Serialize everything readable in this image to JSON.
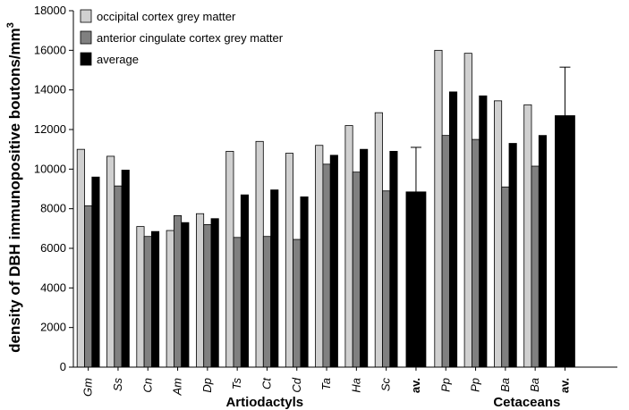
{
  "chart_data": {
    "type": "bar",
    "ylabel": "density of DBH  immunopositive boutons/mm",
    "ylabel_sup": "3",
    "ylim": [
      0,
      18000
    ],
    "yticks": [
      0,
      2000,
      4000,
      6000,
      8000,
      10000,
      12000,
      14000,
      16000,
      18000
    ],
    "legend_position": "top-left",
    "legend": [
      {
        "label": "occipital cortex grey matter",
        "color": "#d0d0d0"
      },
      {
        "label": "anterior cingulate cortex grey matter",
        "color": "#808080"
      },
      {
        "label": "average",
        "color": "#000000"
      }
    ],
    "groups": [
      {
        "name": "Artiodactyls",
        "categories": [
          "Gm",
          "Ss",
          "Cn",
          "Am",
          "Dp",
          "Ts",
          "Ct",
          "Cd",
          "Ta",
          "Ha",
          "Sc"
        ],
        "series": [
          {
            "name": "occipital cortex grey matter",
            "color": "#d0d0d0",
            "values": [
              11000,
              10650,
              7100,
              6900,
              7750,
              10900,
              11400,
              10800,
              11200,
              12200,
              12850
            ]
          },
          {
            "name": "anterior cingulate cortex grey matter",
            "color": "#808080",
            "values": [
              8150,
              9150,
              6600,
              7650,
              7200,
              6550,
              6600,
              6450,
              10250,
              9850,
              8900
            ]
          },
          {
            "name": "average",
            "color": "#000000",
            "values": [
              9600,
              9950,
              6850,
              7300,
              7500,
              8700,
              8950,
              8600,
              10700,
              11000,
              10900
            ]
          }
        ],
        "group_average": {
          "label": "av.",
          "value": 8850,
          "error": 2250,
          "color": "#000000"
        }
      },
      {
        "name": "Cetaceans",
        "categories": [
          "Pp",
          "Pp",
          "Ba",
          "Ba"
        ],
        "series": [
          {
            "name": "occipital cortex grey matter",
            "color": "#d0d0d0",
            "values": [
              16000,
              15850,
              13450,
              13250
            ]
          },
          {
            "name": "anterior cingulate cortex grey matter",
            "color": "#808080",
            "values": [
              11700,
              11500,
              9100,
              10150
            ]
          },
          {
            "name": "average",
            "color": "#000000",
            "values": [
              13900,
              13700,
              11300,
              11700
            ]
          }
        ],
        "group_average": {
          "label": "av.",
          "value": 12700,
          "error": 2450,
          "color": "#000000"
        }
      }
    ]
  }
}
